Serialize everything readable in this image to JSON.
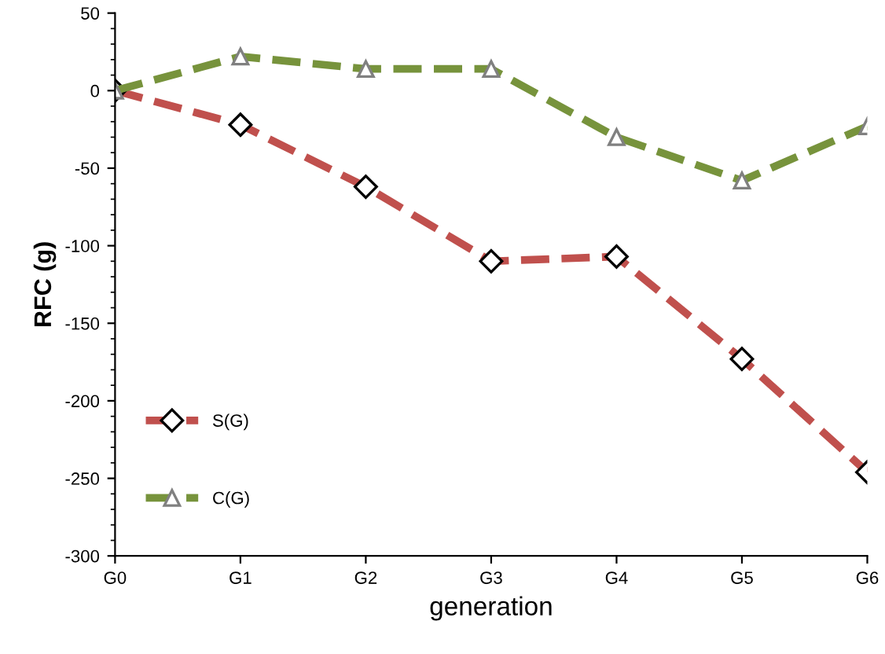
{
  "chart_data": {
    "type": "line",
    "xlabel": "generation",
    "ylabel": "RFC (g)",
    "categories": [
      "G0",
      "G1",
      "G2",
      "G3",
      "G4",
      "G5",
      "G6"
    ],
    "series": [
      {
        "name": "S(G)",
        "color": "#c0504d",
        "marker": "diamond",
        "values": [
          0,
          -22,
          -62,
          -110,
          -107,
          -173,
          -246
        ]
      },
      {
        "name": "C(G)",
        "color": "#77933c",
        "marker": "triangle",
        "values": [
          0,
          22,
          14,
          14,
          -30,
          -58,
          -23
        ]
      }
    ],
    "line_style": "dashed",
    "ylim": [
      -300,
      50
    ],
    "yticks": [
      -300,
      -250,
      -200,
      -150,
      -100,
      -50,
      0,
      50
    ],
    "grid": false,
    "legend": "bottom left"
  }
}
